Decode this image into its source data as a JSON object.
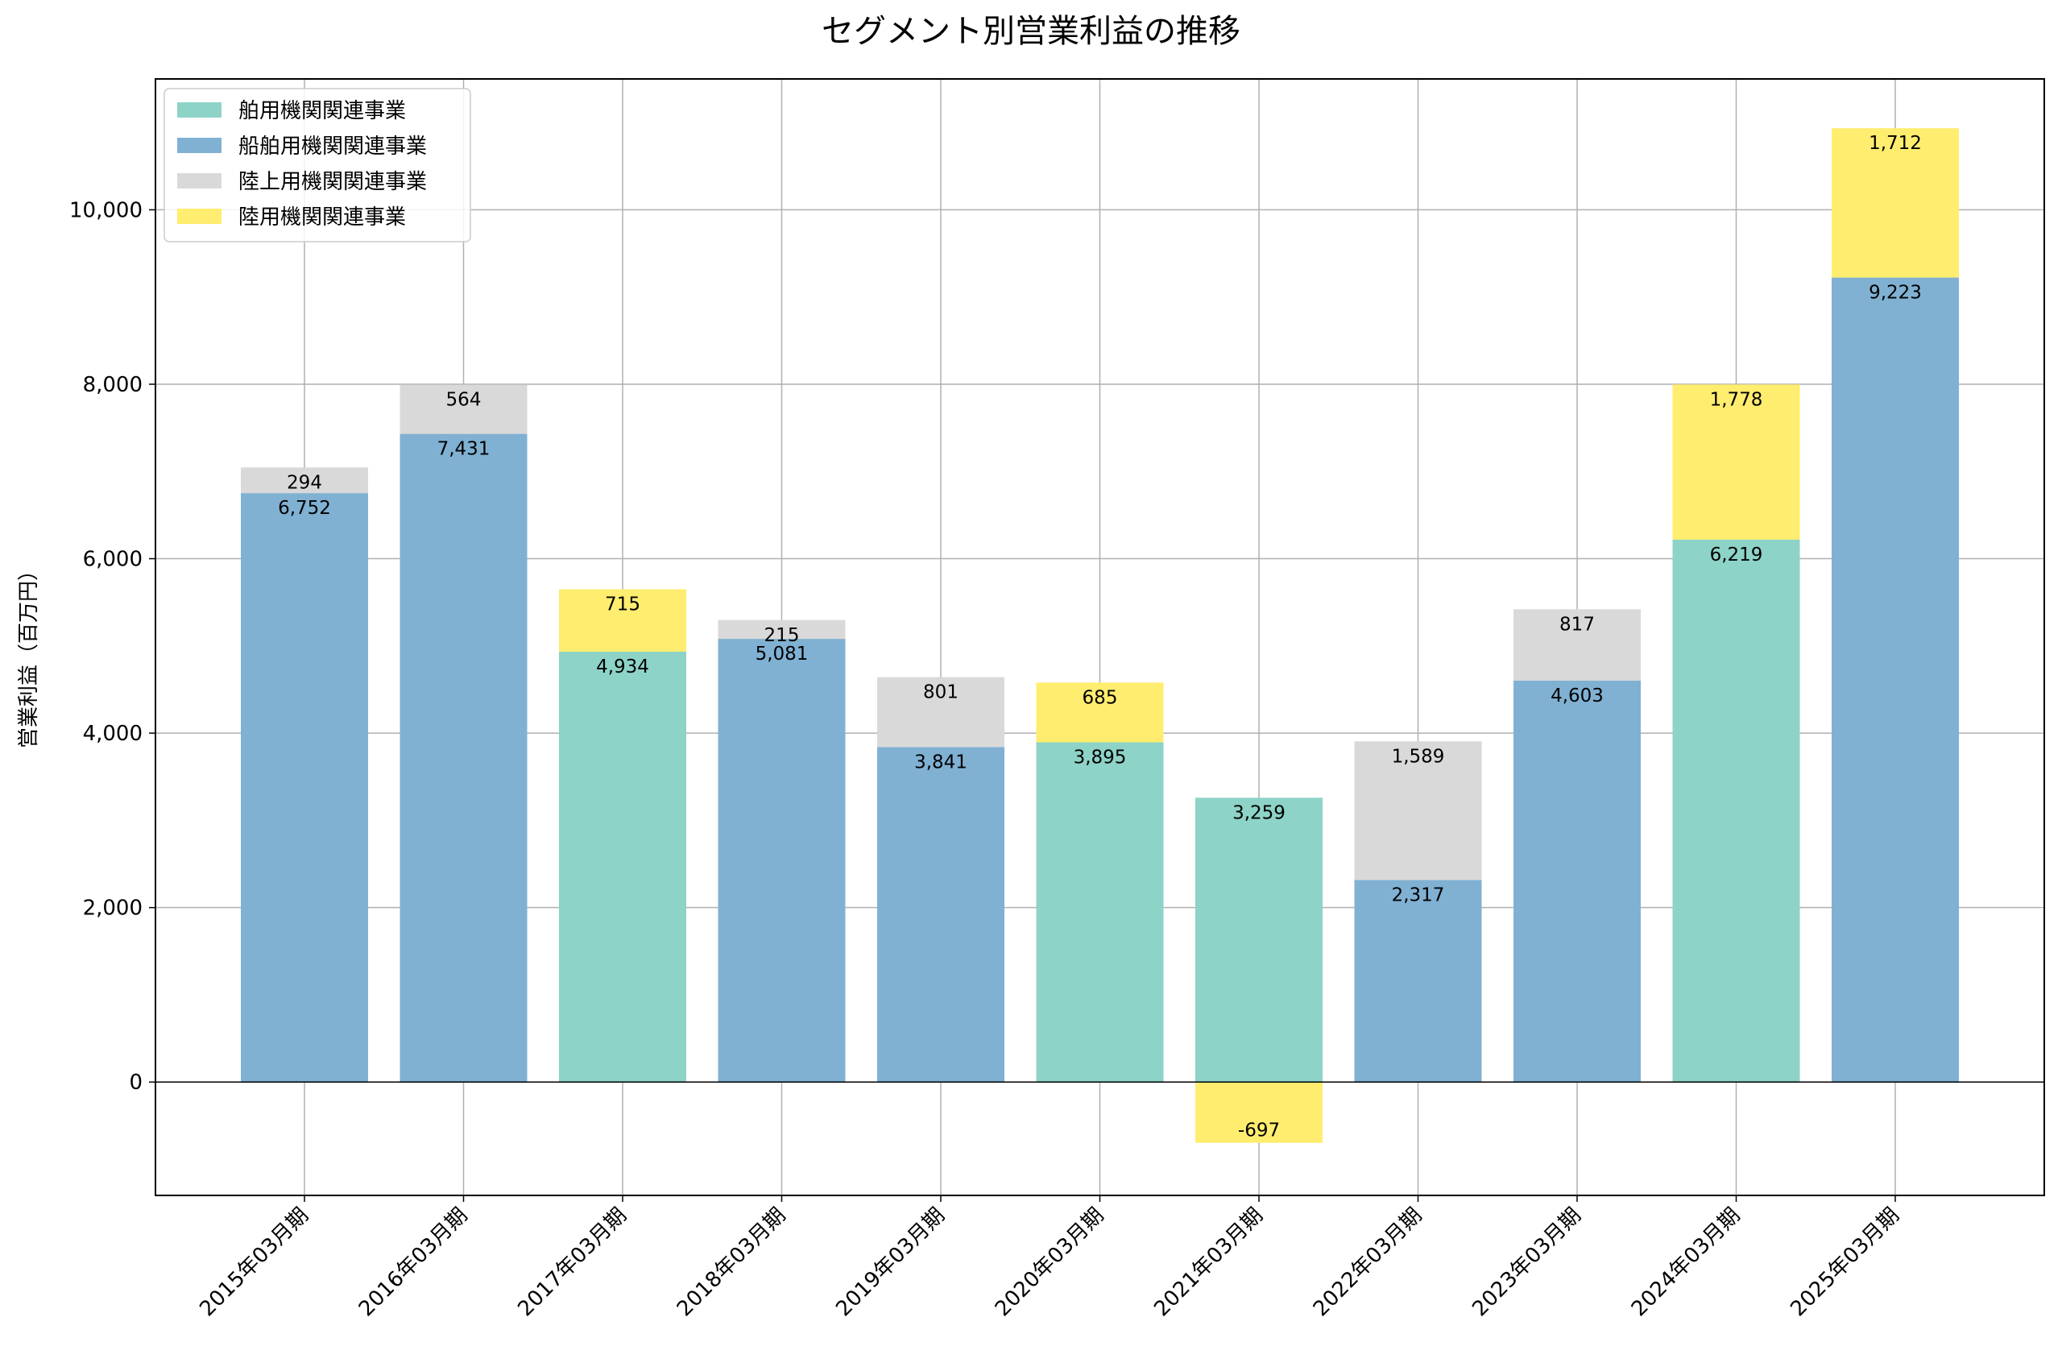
{
  "chart_data": {
    "type": "bar",
    "stacked": true,
    "title": "セグメント別営業利益の推移",
    "xlabel": "",
    "ylabel": "営業利益（百万円）",
    "ylim": [
      -1300,
      11500
    ],
    "yticks": [
      0,
      2000,
      4000,
      6000,
      8000,
      10000
    ],
    "ytick_labels": [
      "0",
      "2,000",
      "4,000",
      "6,000",
      "8,000",
      "10,000"
    ],
    "grid": true,
    "legend_position": "top-left",
    "categories": [
      "2015年03月期",
      "2016年03月期",
      "2017年03月期",
      "2018年03月期",
      "2019年03月期",
      "2020年03月期",
      "2021年03月期",
      "2022年03月期",
      "2023年03月期",
      "2024年03月期",
      "2025年03月期"
    ],
    "series": [
      {
        "name": "舶用機関関連事業",
        "color": "#8dd3c7",
        "values": [
          null,
          null,
          4934,
          null,
          null,
          3895,
          3259,
          null,
          null,
          6219,
          null
        ]
      },
      {
        "name": "船舶用機関関連事業",
        "color": "#80b1d3",
        "values": [
          6752,
          7431,
          null,
          5081,
          3841,
          null,
          null,
          2317,
          4603,
          null,
          9223
        ]
      },
      {
        "name": "陸上用機関関連事業",
        "color": "#d9d9d9",
        "values": [
          294,
          564,
          null,
          215,
          801,
          null,
          null,
          1589,
          817,
          null,
          null
        ]
      },
      {
        "name": "陸用機関関連事業",
        "color": "#ffed6f",
        "values": [
          null,
          null,
          715,
          null,
          null,
          685,
          -697,
          null,
          null,
          1778,
          1712
        ]
      }
    ],
    "data_labels": [
      [
        "6,752",
        "294"
      ],
      [
        "7,431",
        "564"
      ],
      [
        "4,934",
        "715"
      ],
      [
        "5,081",
        "215"
      ],
      [
        "3,841",
        "801"
      ],
      [
        "3,895",
        "685"
      ],
      [
        "3,259",
        "-697"
      ],
      [
        "2,317",
        "1,589"
      ],
      [
        "4,603",
        "817"
      ],
      [
        "6,219",
        "1,778"
      ],
      [
        "9,223",
        "1,712"
      ]
    ]
  }
}
